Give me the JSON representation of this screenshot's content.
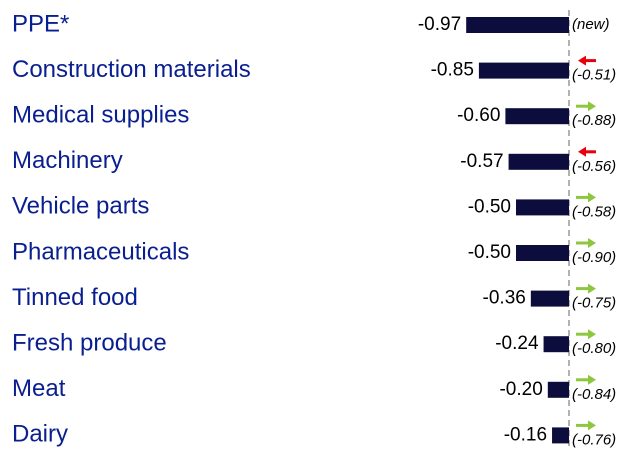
{
  "chart_data": {
    "type": "bar",
    "orientation": "horizontal",
    "categories": [
      "PPE*",
      "Construction materials",
      "Medical supplies",
      "Machinery",
      "Vehicle parts",
      "Pharmaceuticals",
      "Tinned food",
      "Fresh produce",
      "Meat",
      "Dairy"
    ],
    "values": [
      -0.97,
      -0.85,
      -0.6,
      -0.57,
      -0.5,
      -0.5,
      -0.36,
      -0.24,
      -0.2,
      -0.16
    ],
    "value_labels": [
      "-0.97",
      "-0.85",
      "-0.60",
      "-0.57",
      "-0.50",
      "-0.50",
      "-0.36",
      "-0.24",
      "-0.20",
      "-0.16"
    ],
    "previous": [
      null,
      -0.51,
      -0.88,
      -0.56,
      -0.58,
      -0.9,
      -0.75,
      -0.8,
      -0.84,
      -0.76
    ],
    "previous_labels": [
      "(new)",
      "(-0.51)",
      "(-0.88)",
      "(-0.56)",
      "(-0.58)",
      "(-0.90)",
      "(-0.75)",
      "(-0.80)",
      "(-0.84)",
      "(-0.76)"
    ],
    "color": "#0d0d3d",
    "increase_color": "#8dc63f",
    "decrease_color": "#e8000b",
    "xlim": [
      -1,
      0
    ]
  }
}
